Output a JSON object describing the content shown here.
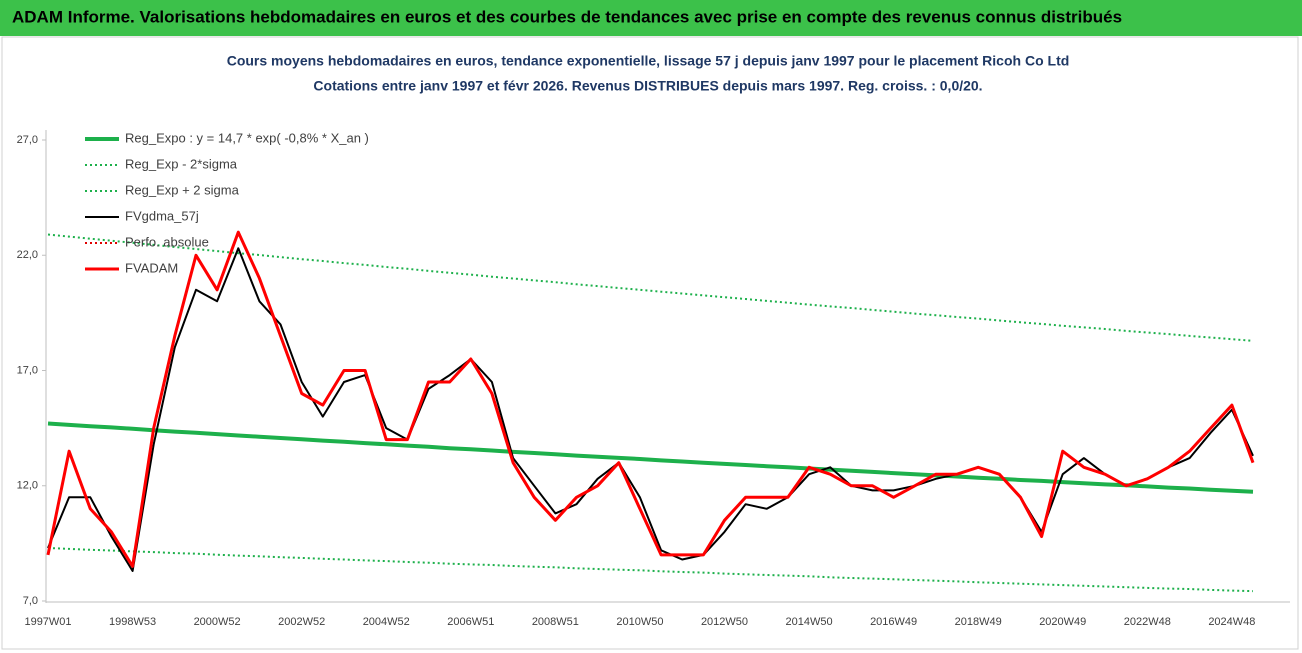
{
  "chart_data": {
    "type": "line",
    "banner": "ADAM Informe. Valorisations hebdomadaires en euros et des courbes de tendances avec prise en compte des revenus connus distribués",
    "title": "Cours moyens hebdomadaires en euros, tendance exponentielle, lissage 57 j depuis janv 1997 pour le placement Ricoh Co Ltd",
    "subtitle": "Cotations entre janv 1997 et févr 2026. Revenus DISTRIBUES depuis mars 1997. Reg. croiss. : 0,0/20.",
    "categories": [
      "1997W01",
      null,
      null,
      null,
      "1998W53",
      null,
      null,
      null,
      "2000W52",
      null,
      null,
      null,
      "2002W52",
      null,
      null,
      null,
      "2004W52",
      null,
      null,
      null,
      "2006W51",
      null,
      null,
      null,
      "2008W51",
      null,
      null,
      null,
      "2010W50",
      null,
      null,
      null,
      "2012W50",
      null,
      null,
      null,
      "2014W50",
      null,
      null,
      null,
      "2016W49",
      null,
      null,
      null,
      "2018W49",
      null,
      null,
      null,
      "2020W49",
      null,
      null,
      null,
      "2022W48",
      null,
      null,
      null,
      "2024W48",
      null
    ],
    "ylim": [
      7,
      27
    ],
    "yticks": [
      {
        "value": 7,
        "label": "7,0"
      },
      {
        "value": 12,
        "label": "12,0"
      },
      {
        "value": 17,
        "label": "17,0"
      },
      {
        "value": 22,
        "label": "22,0"
      },
      {
        "value": 27,
        "label": "27,0"
      }
    ],
    "legend": "upper left",
    "series": [
      {
        "name": "Reg_Expo : y = 14,7 * exp( -0,8% *  X_an )",
        "color": "#1db04b",
        "style": "solid",
        "width": 4,
        "values": [
          14.7,
          14.64,
          14.58,
          14.53,
          14.47,
          14.41,
          14.35,
          14.3,
          14.24,
          14.18,
          14.13,
          14.07,
          14.02,
          13.96,
          13.91,
          13.85,
          13.8,
          13.74,
          13.69,
          13.63,
          13.58,
          13.53,
          13.47,
          13.42,
          13.37,
          13.31,
          13.26,
          13.21,
          13.16,
          13.1,
          13.05,
          13.0,
          12.95,
          12.9,
          12.85,
          12.8,
          12.75,
          12.7,
          12.65,
          12.6,
          12.55,
          12.5,
          12.45,
          12.4,
          12.35,
          12.3,
          12.25,
          12.21,
          12.16,
          12.11,
          12.06,
          12.02,
          11.97,
          11.92,
          11.88,
          11.83,
          11.78,
          11.74
        ]
      },
      {
        "name": "Reg_Exp - 2*sigma",
        "color": "#1db04b",
        "style": "dotted",
        "width": 2,
        "values": [
          9.3,
          9.26,
          9.22,
          9.19,
          9.15,
          9.12,
          9.08,
          9.05,
          9.01,
          8.97,
          8.94,
          8.9,
          8.87,
          8.83,
          8.8,
          8.76,
          8.73,
          8.69,
          8.66,
          8.62,
          8.59,
          8.56,
          8.52,
          8.49,
          8.46,
          8.42,
          8.39,
          8.36,
          8.33,
          8.29,
          8.26,
          8.23,
          8.19,
          8.16,
          8.13,
          8.1,
          8.07,
          8.03,
          8.0,
          7.97,
          7.94,
          7.91,
          7.88,
          7.85,
          7.81,
          7.78,
          7.75,
          7.72,
          7.69,
          7.66,
          7.63,
          7.6,
          7.57,
          7.54,
          7.52,
          7.48,
          7.45,
          7.43
        ]
      },
      {
        "name": "Reg_Exp + 2 sigma",
        "color": "#1db04b",
        "style": "dotted",
        "width": 2,
        "values": [
          22.9,
          22.81,
          22.72,
          22.63,
          22.54,
          22.45,
          22.36,
          22.27,
          22.18,
          22.09,
          22.01,
          21.92,
          21.83,
          21.75,
          21.66,
          21.58,
          21.49,
          21.41,
          21.32,
          21.24,
          21.16,
          21.07,
          20.99,
          20.91,
          20.83,
          20.74,
          20.66,
          20.58,
          20.5,
          20.42,
          20.34,
          20.26,
          20.18,
          20.1,
          20.02,
          19.94,
          19.86,
          19.78,
          19.71,
          19.63,
          19.55,
          19.47,
          19.4,
          19.32,
          19.25,
          19.17,
          19.09,
          19.02,
          18.94,
          18.87,
          18.8,
          18.72,
          18.65,
          18.58,
          18.5,
          18.43,
          18.36,
          18.29
        ]
      },
      {
        "name": "FVgdma_57j",
        "color": "#000000",
        "style": "solid",
        "width": 2,
        "values": [
          9.3,
          11.5,
          11.5,
          9.8,
          8.3,
          13.8,
          18.0,
          20.5,
          20.0,
          22.3,
          20.0,
          19.0,
          16.5,
          15.0,
          16.5,
          16.8,
          14.5,
          14.0,
          16.2,
          16.8,
          17.5,
          16.5,
          13.2,
          12.0,
          10.8,
          11.2,
          12.3,
          13.0,
          11.5,
          9.2,
          8.8,
          9.0,
          10.0,
          11.2,
          11.0,
          11.5,
          12.5,
          12.8,
          12.0,
          11.8,
          11.8,
          12.0,
          12.3,
          12.5,
          12.8,
          12.5,
          11.5,
          10.0,
          12.5,
          13.2,
          12.5,
          12.0,
          12.3,
          12.8,
          13.2,
          14.3,
          15.3,
          13.3
        ]
      },
      {
        "name": "Perfo. absolue",
        "color": "#e00000",
        "style": "dotted",
        "width": 2,
        "values": [
          null,
          null,
          null,
          null,
          null,
          null,
          null,
          null,
          null,
          null,
          null,
          null,
          null,
          null,
          null,
          null,
          null,
          null,
          null,
          null,
          null,
          null,
          null,
          null,
          null,
          null,
          null,
          null,
          null,
          null,
          null,
          null,
          null,
          null,
          null,
          null,
          null,
          null,
          null,
          null,
          null,
          null,
          null,
          null,
          null,
          null,
          null,
          null,
          null,
          null,
          null,
          null,
          null,
          null,
          null,
          null,
          null,
          null
        ]
      },
      {
        "name": "FVADAM",
        "color": "#ff0000",
        "style": "solid",
        "width": 3,
        "values": [
          9.0,
          13.5,
          11.0,
          10.0,
          8.5,
          14.5,
          18.5,
          22.0,
          20.5,
          23.0,
          21.0,
          18.5,
          16.0,
          15.5,
          17.0,
          17.0,
          14.0,
          14.0,
          16.5,
          16.5,
          17.5,
          16.0,
          13.0,
          11.5,
          10.5,
          11.5,
          12.0,
          13.0,
          11.0,
          9.0,
          9.0,
          9.0,
          10.5,
          11.5,
          11.5,
          11.5,
          12.8,
          12.5,
          12.0,
          12.0,
          11.5,
          12.0,
          12.5,
          12.5,
          12.8,
          12.5,
          11.5,
          9.8,
          13.5,
          12.8,
          12.5,
          12.0,
          12.3,
          12.8,
          13.5,
          14.5,
          15.5,
          13.0
        ]
      }
    ]
  }
}
